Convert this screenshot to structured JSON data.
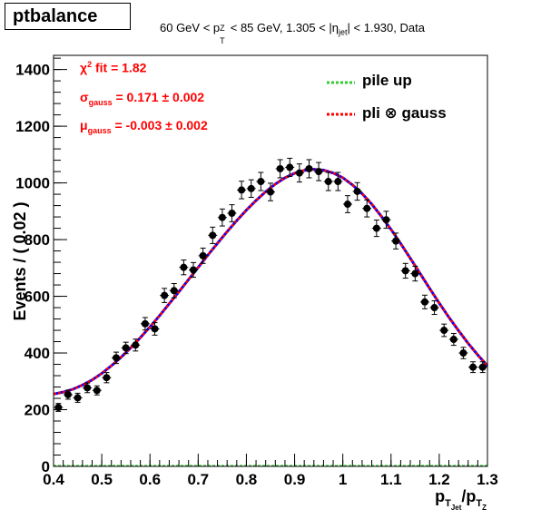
{
  "canvas_title": "ptbalance",
  "subtitle": {
    "part1": "60 GeV < p",
    "sub1": "T",
    "sup1": "Z",
    "part2": " < 85 GeV, 1.305 < |η",
    "sub2": "jet",
    "part3": "| < 1.930, Data"
  },
  "annotations": {
    "chi2_prefix": "χ",
    "chi2_sup": "2",
    "chi2_rest": " fit = 1.82",
    "sigma_prefix": "σ",
    "sigma_sub": "gauss",
    "sigma_rest": " = 0.171 ± 0.002",
    "mu_prefix": "μ",
    "mu_sub": "gauss",
    "mu_rest": " = -0.003  ± 0.002"
  },
  "legend": [
    {
      "label": "pile up",
      "color": "#33cc33"
    },
    {
      "label": "pli  ⊗  gauss",
      "color": "#ff0000"
    }
  ],
  "axis": {
    "ylabel": "Events / ( 0.02 )",
    "xlabel_main": "p",
    "xlabel_sub1": "T",
    "xlabel_subsub1": "Jet",
    "xlabel_mid": "/p",
    "xlabel_sub2": "T",
    "xlabel_subsub2": "Z"
  },
  "chart_data": {
    "type": "scatter",
    "xlim": [
      0.4,
      1.3
    ],
    "ylim": [
      0,
      1450
    ],
    "x_ticks": [
      0.4,
      0.5,
      0.6,
      0.7,
      0.8,
      0.9,
      1.0,
      1.1,
      1.2,
      1.3
    ],
    "x_tick_labels": [
      "0.4",
      "0.5",
      "0.6",
      "0.7",
      "0.8",
      "0.9",
      "1",
      "1.1",
      "1.2",
      "1.3"
    ],
    "y_ticks": [
      0,
      200,
      400,
      600,
      800,
      1000,
      1200,
      1400
    ],
    "y_tick_labels": [
      "0",
      "200",
      "400",
      "600",
      "800",
      "1000",
      "1200",
      "1400"
    ],
    "grid": false,
    "series": [
      {
        "name": "Data",
        "color": "#000000",
        "x": [
          0.41,
          0.43,
          0.45,
          0.47,
          0.49,
          0.51,
          0.53,
          0.55,
          0.57,
          0.59,
          0.61,
          0.63,
          0.65,
          0.67,
          0.69,
          0.71,
          0.73,
          0.75,
          0.77,
          0.79,
          0.81,
          0.83,
          0.85,
          0.87,
          0.89,
          0.91,
          0.93,
          0.95,
          0.97,
          0.99,
          1.01,
          1.03,
          1.05,
          1.07,
          1.09,
          1.11,
          1.13,
          1.15,
          1.17,
          1.19,
          1.21,
          1.23,
          1.25,
          1.27,
          1.29
        ],
        "y": [
          208,
          253,
          242,
          277,
          268,
          313,
          383,
          418,
          428,
          503,
          485,
          603,
          620,
          702,
          693,
          743,
          815,
          878,
          893,
          975,
          980,
          1005,
          968,
          1050,
          1055,
          1035,
          1050,
          1040,
          1005,
          1005,
          925,
          970,
          910,
          840,
          870,
          795,
          690,
          680,
          580,
          560,
          480,
          448,
          400,
          350,
          350
        ],
        "err": [
          14,
          16,
          16,
          17,
          16,
          18,
          20,
          20,
          21,
          22,
          22,
          25,
          25,
          26,
          26,
          27,
          29,
          30,
          30,
          31,
          31,
          32,
          31,
          32,
          32,
          32,
          32,
          32,
          32,
          32,
          30,
          31,
          30,
          29,
          30,
          28,
          26,
          26,
          24,
          24,
          22,
          21,
          20,
          19,
          19
        ]
      },
      {
        "name": "pli ⊗ gauss",
        "color": "#ff0000",
        "x": [
          0.4,
          0.42,
          0.44,
          0.46,
          0.48,
          0.5,
          0.52,
          0.54,
          0.56,
          0.58,
          0.6,
          0.62,
          0.64,
          0.66,
          0.68,
          0.7,
          0.72,
          0.74,
          0.76,
          0.78,
          0.8,
          0.82,
          0.84,
          0.86,
          0.88,
          0.9,
          0.92,
          0.94,
          0.96,
          0.98,
          1.0,
          1.02,
          1.04,
          1.06,
          1.08,
          1.1,
          1.12,
          1.14,
          1.16,
          1.18,
          1.2,
          1.22,
          1.24,
          1.26,
          1.28,
          1.3
        ],
        "y": [
          255,
          262,
          272,
          287,
          305,
          328,
          355,
          385,
          418,
          454,
          492,
          532,
          574,
          616,
          659,
          702,
          745,
          787,
          828,
          867,
          904,
          938,
          969,
          996,
          1018,
          1034,
          1044,
          1048,
          1045,
          1035,
          1018,
          993,
          962,
          925,
          882,
          836,
          786,
          734,
          681,
          628,
          576,
          526,
          479,
          434,
          393,
          355
        ]
      },
      {
        "name": "pile up",
        "color": "#33cc33",
        "x": [
          0.4,
          1.3
        ],
        "y": [
          2,
          2
        ]
      }
    ]
  }
}
